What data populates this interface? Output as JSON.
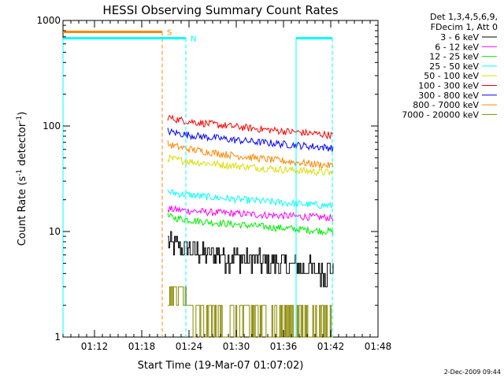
{
  "chart_data": {
    "type": "line",
    "title": "HESSI Observing Summary Count Rates",
    "xlabel": "Start Time (19-Mar-07 01:07:02)",
    "ylabel_main": "Count Rate (s",
    "ylabel_sup1": "-1",
    "ylabel_mid": " detector",
    "ylabel_sup2": "-1",
    "ylabel_end": ")",
    "y_scale": "log",
    "ylim": [
      1,
      1000
    ],
    "xlim_minutes": [
      1.0,
      41.0
    ],
    "x_ticks": [
      {
        "minute": 5,
        "label": "01:12"
      },
      {
        "minute": 11,
        "label": "01:18"
      },
      {
        "minute": 17,
        "label": "01:24"
      },
      {
        "minute": 23,
        "label": "01:30"
      },
      {
        "minute": 29,
        "label": "01:36"
      },
      {
        "minute": 35,
        "label": "01:42"
      },
      {
        "minute": 41,
        "label": "01:48"
      }
    ],
    "y_ticks": [
      {
        "value": 1,
        "label": "1"
      },
      {
        "value": 10,
        "label": "10"
      },
      {
        "value": 100,
        "label": "100"
      },
      {
        "value": 1000,
        "label": "1000"
      }
    ],
    "legend_header": [
      "Det 1,3,4,5,6,9,",
      "FDecim 1, Att 0"
    ],
    "series": [
      {
        "name": "3 - 6 keV",
        "color": "#000000",
        "x_start": 14.3,
        "x_end": 35.3,
        "y_start": 8.0,
        "y_end": 4.2
      },
      {
        "name": "6 - 12 keV",
        "color": "#ff00ff",
        "x_start": 14.3,
        "x_end": 35.3,
        "y_start": 16.5,
        "y_end": 13.5
      },
      {
        "name": "12 - 25 keV",
        "color": "#00ee00",
        "x_start": 14.3,
        "x_end": 35.3,
        "y_start": 14.0,
        "y_end": 10.0
      },
      {
        "name": "25 - 50 keV",
        "color": "#00ffff",
        "x_start": 14.3,
        "x_end": 35.3,
        "y_start": 24.0,
        "y_end": 17.5
      },
      {
        "name": "50 - 100 keV",
        "color": "#dddd00",
        "x_start": 14.3,
        "x_end": 35.3,
        "y_start": 50.0,
        "y_end": 36.0
      },
      {
        "name": "100 - 300 keV",
        "color": "#ff0000",
        "x_start": 14.3,
        "x_end": 35.3,
        "y_start": 122.0,
        "y_end": 82.0
      },
      {
        "name": "300 - 800 keV",
        "color": "#0000ff",
        "x_start": 14.3,
        "x_end": 35.3,
        "y_start": 90.0,
        "y_end": 62.0
      },
      {
        "name": "800 - 7000 keV",
        "color": "#ff8800",
        "x_start": 14.3,
        "x_end": 35.3,
        "y_start": 68.0,
        "y_end": 42.0
      },
      {
        "name": "7000 - 20000 keV",
        "color": "#888800",
        "x_start": 14.3,
        "x_end": 35.3,
        "y_start": 2.5,
        "y_end": 1.6
      }
    ],
    "markers": [
      {
        "label": "S",
        "color": "#ff8800",
        "bar_from": 1.0,
        "bar_to": 13.6,
        "bar_y": 780,
        "line_x": 13.6,
        "dashed": true
      },
      {
        "label": "N",
        "color": "#00ffff",
        "bar_from": 1.0,
        "bar_to": 16.6,
        "bar_y": 680,
        "line_x": 16.6,
        "dashed": true
      }
    ],
    "night_lines": [
      {
        "x": 1.0,
        "color": "#00ffff",
        "dashed": false
      },
      {
        "x": 30.6,
        "color": "#00ffff",
        "dashed": false
      },
      {
        "x": 35.2,
        "color": "#00ffff",
        "dashed": true
      }
    ],
    "night_bar": {
      "from": 30.6,
      "to": 35.2,
      "y": 680,
      "color": "#00ffff"
    },
    "grid": false,
    "legend_position": "top-right"
  },
  "footer": {
    "date": "2-Dec-2009 09:44"
  }
}
